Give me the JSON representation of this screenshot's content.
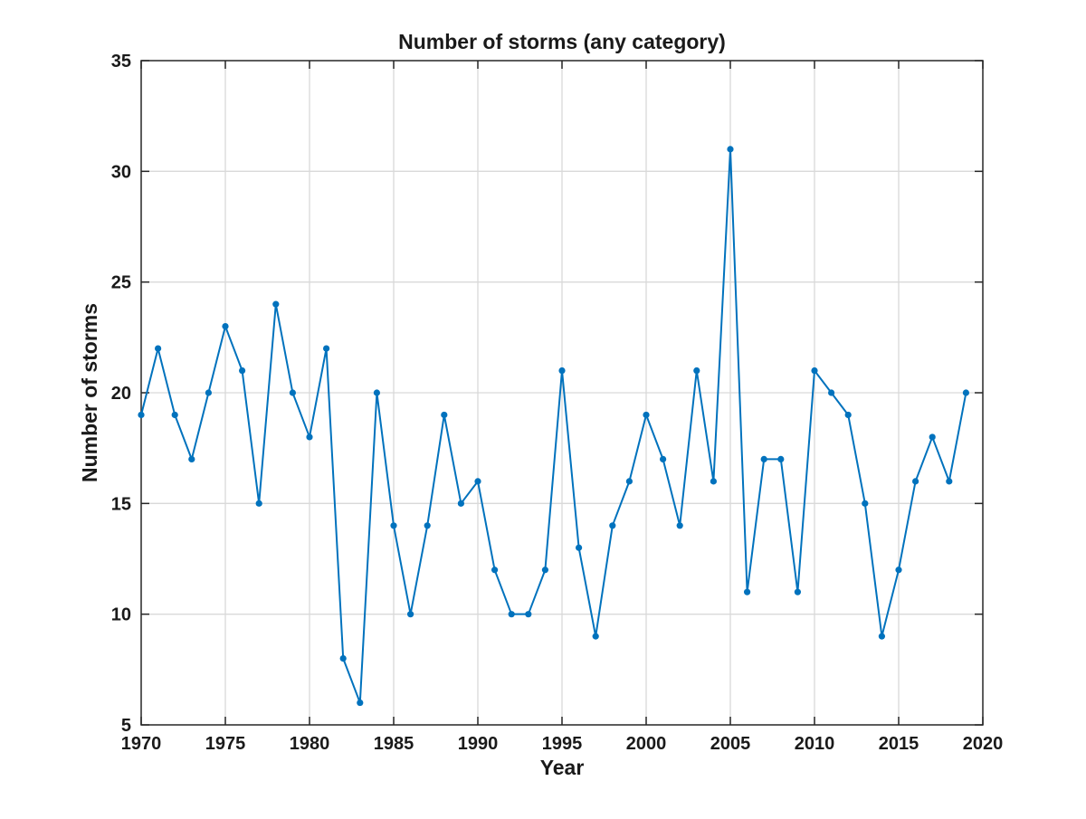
{
  "chart_data": {
    "type": "line",
    "title": "Number of storms (any category)",
    "xlabel": "Year",
    "ylabel": "Number of storms",
    "xlim": [
      1970,
      2020
    ],
    "ylim": [
      5,
      35
    ],
    "xticks": [
      1970,
      1975,
      1980,
      1985,
      1990,
      1995,
      2000,
      2005,
      2010,
      2015,
      2020
    ],
    "yticks": [
      5,
      10,
      15,
      20,
      25,
      30,
      35
    ],
    "grid": true,
    "colors": {
      "line": "#0072BD",
      "grid": "#d9d9d9",
      "axes": "#262626"
    },
    "series": [
      {
        "x": [
          1970,
          1971,
          1972,
          1973,
          1974,
          1975,
          1976,
          1977,
          1978,
          1979,
          1980,
          1981,
          1982,
          1983,
          1984,
          1985,
          1986,
          1987,
          1988,
          1989,
          1990,
          1991,
          1992,
          1993,
          1994,
          1995,
          1996,
          1997,
          1998,
          1999,
          2000,
          2001,
          2002,
          2003,
          2004,
          2005,
          2006,
          2007,
          2008,
          2009,
          2010,
          2011,
          2012,
          2013,
          2014,
          2015,
          2016,
          2017,
          2018,
          2019
        ],
        "y": [
          19,
          22,
          19,
          17,
          20,
          23,
          21,
          15,
          24,
          20,
          18,
          22,
          8,
          6,
          20,
          14,
          10,
          14,
          19,
          15,
          16,
          12,
          10,
          10,
          12,
          21,
          13,
          9,
          14,
          16,
          19,
          17,
          14,
          21,
          16,
          31,
          11,
          17,
          17,
          11,
          21,
          20,
          19,
          15,
          9,
          12,
          16,
          18,
          16,
          20
        ]
      }
    ]
  }
}
